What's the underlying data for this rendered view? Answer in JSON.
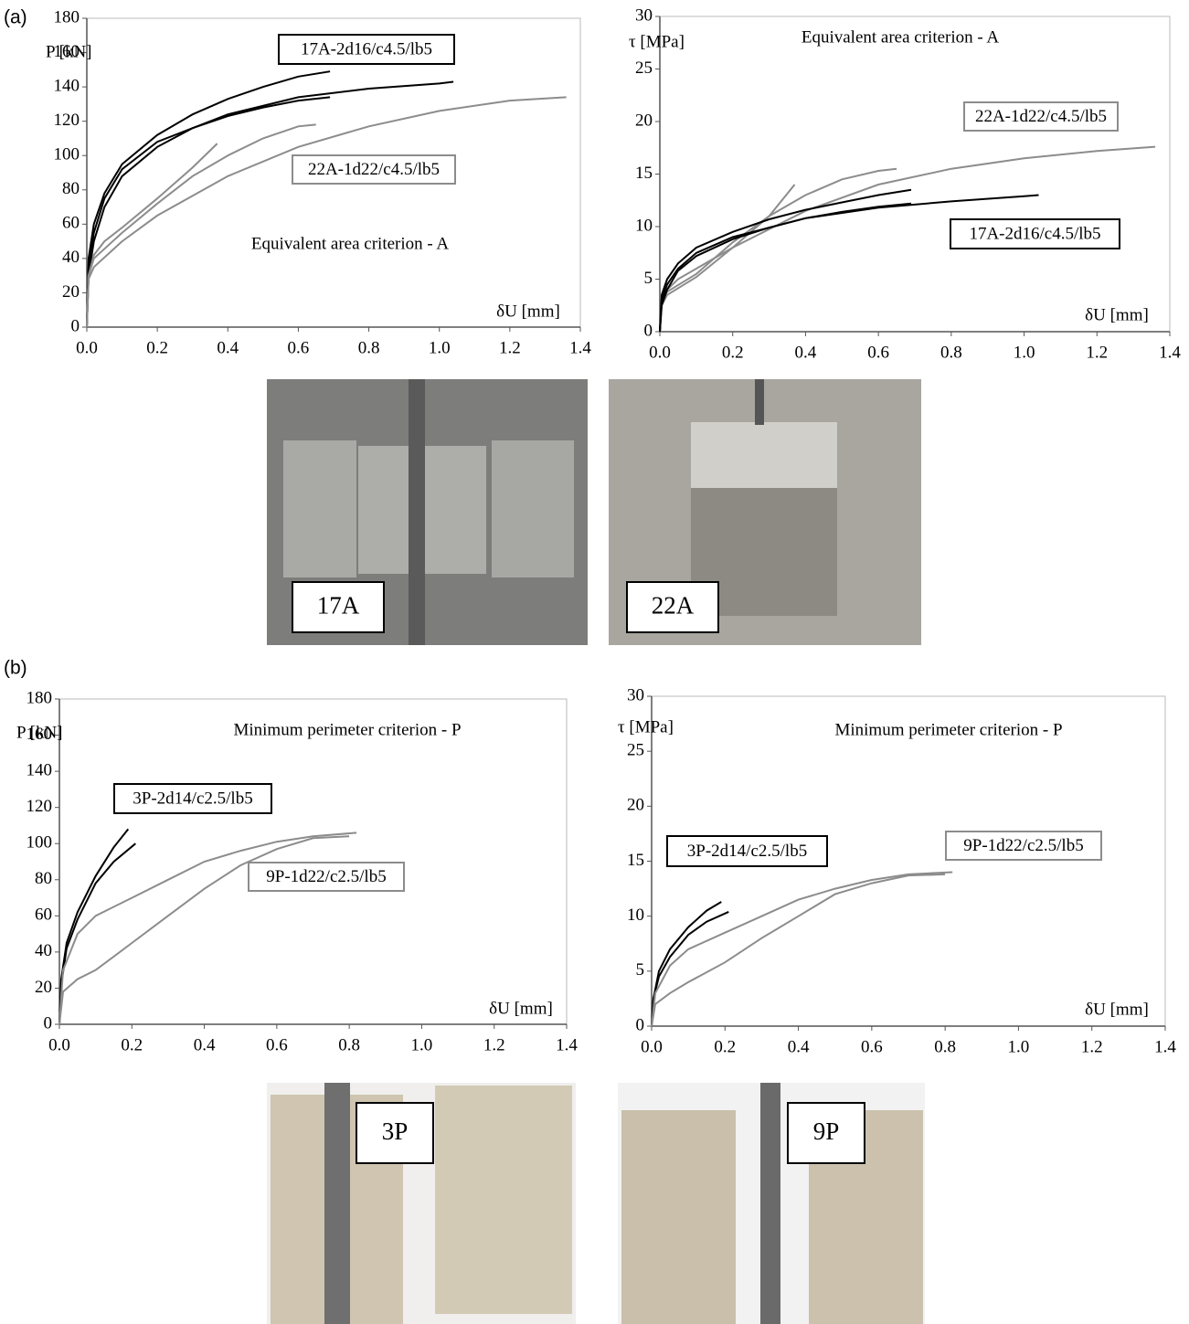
{
  "panels": [
    {
      "label": "(a)",
      "photos": [
        "17A",
        "22A"
      ]
    },
    {
      "label": "(b)",
      "photos": [
        "3P",
        "9P"
      ]
    }
  ],
  "chart_data": [
    {
      "type": "line",
      "title": "Equivalent area criterion - A",
      "y_label": "P [kN]",
      "x_label": "δU [mm]",
      "xlim": [
        0,
        1.4
      ],
      "ylim": [
        0,
        180
      ],
      "xticks": [
        {
          "value": 0,
          "label": "0.0"
        },
        0.2,
        0.4,
        0.6,
        0.8,
        {
          "value": 1,
          "label": "1.0"
        },
        1.2,
        1.4
      ],
      "yticks": [
        0,
        20,
        40,
        60,
        80,
        100,
        120,
        140,
        160,
        180
      ],
      "series": [
        {
          "name": "17A-2d16/c4.5/lb5",
          "color": "#000000",
          "lines": [
            {
              "x": [
                0,
                0.005,
                0.02,
                0.05,
                0.1,
                0.2,
                0.3,
                0.4,
                0.5,
                0.6,
                0.69
              ],
              "values": [
                0,
                40,
                60,
                78,
                95,
                112,
                124,
                133,
                140,
                146,
                149
              ]
            },
            {
              "x": [
                0,
                0.005,
                0.02,
                0.05,
                0.1,
                0.2,
                0.4,
                0.6,
                0.8,
                1.0,
                1.04
              ],
              "values": [
                0,
                35,
                55,
                75,
                92,
                108,
                124,
                134,
                139,
                142,
                143
              ]
            },
            {
              "x": [
                0,
                0.005,
                0.02,
                0.05,
                0.1,
                0.2,
                0.3,
                0.4,
                0.5,
                0.6,
                0.69
              ],
              "values": [
                0,
                30,
                50,
                70,
                88,
                105,
                116,
                123,
                128,
                132,
                134
              ]
            }
          ]
        },
        {
          "name": "22A-1d22/c4.5/lb5",
          "color": "#8c8c8c",
          "lines": [
            {
              "x": [
                0,
                0.005,
                0.02,
                0.05,
                0.1,
                0.2,
                0.3,
                0.37
              ],
              "values": [
                0,
                30,
                42,
                50,
                58,
                75,
                93,
                107
              ]
            },
            {
              "x": [
                0,
                0.005,
                0.02,
                0.1,
                0.2,
                0.3,
                0.4,
                0.5,
                0.6,
                0.65
              ],
              "values": [
                0,
                30,
                40,
                55,
                72,
                88,
                100,
                110,
                117,
                118
              ]
            },
            {
              "x": [
                0,
                0.005,
                0.02,
                0.1,
                0.2,
                0.4,
                0.6,
                0.8,
                1.0,
                1.2,
                1.36
              ],
              "values": [
                0,
                28,
                35,
                50,
                65,
                88,
                105,
                117,
                126,
                132,
                134
              ]
            }
          ]
        }
      ]
    },
    {
      "type": "line",
      "title": "Equivalent area criterion - A",
      "y_label": "τ [MPa]",
      "x_label": "δU [mm]",
      "xlim": [
        0,
        1.4
      ],
      "ylim": [
        0,
        30
      ],
      "xticks": [
        {
          "value": 0,
          "label": "0.0"
        },
        0.2,
        0.4,
        0.6,
        0.8,
        {
          "value": 1,
          "label": "1.0"
        },
        1.2,
        1.4
      ],
      "yticks": [
        0,
        5,
        10,
        15,
        20,
        25,
        30
      ],
      "series": [
        {
          "name": "22A-1d22/c4.5/lb5",
          "color": "#8c8c8c",
          "lines": [
            {
              "x": [
                0,
                0.005,
                0.02,
                0.05,
                0.1,
                0.2,
                0.3,
                0.37
              ],
              "values": [
                0,
                3,
                4,
                5,
                6,
                8,
                11,
                14
              ]
            },
            {
              "x": [
                0,
                0.005,
                0.02,
                0.1,
                0.2,
                0.3,
                0.4,
                0.5,
                0.6,
                0.65
              ],
              "values": [
                0,
                3,
                3.8,
                5.5,
                8.5,
                11,
                13,
                14.5,
                15.3,
                15.5
              ]
            },
            {
              "x": [
                0,
                0.005,
                0.02,
                0.1,
                0.2,
                0.4,
                0.6,
                0.8,
                1.0,
                1.2,
                1.36
              ],
              "values": [
                0,
                2.5,
                3.5,
                5.2,
                8,
                11.5,
                14,
                15.5,
                16.5,
                17.2,
                17.6
              ]
            }
          ]
        },
        {
          "name": "17A-2d16/c4.5/lb5",
          "color": "#000000",
          "lines": [
            {
              "x": [
                0,
                0.005,
                0.02,
                0.05,
                0.1,
                0.2,
                0.3,
                0.4,
                0.5,
                0.6,
                0.69
              ],
              "values": [
                0,
                3.5,
                5,
                6.5,
                8,
                9.5,
                10.7,
                11.6,
                12.3,
                13,
                13.5
              ]
            },
            {
              "x": [
                0,
                0.005,
                0.02,
                0.05,
                0.1,
                0.2,
                0.4,
                0.6,
                0.8,
                1.0,
                1.04
              ],
              "values": [
                0,
                3,
                4.5,
                6,
                7.5,
                9,
                10.8,
                11.8,
                12.4,
                12.9,
                13
              ]
            },
            {
              "x": [
                0,
                0.005,
                0.02,
                0.05,
                0.1,
                0.2,
                0.3,
                0.4,
                0.5,
                0.6,
                0.69
              ],
              "values": [
                0,
                2.5,
                4,
                5.8,
                7.2,
                8.8,
                9.9,
                10.8,
                11.4,
                11.9,
                12.2
              ]
            }
          ]
        }
      ]
    },
    {
      "type": "line",
      "title": "Minimum perimeter criterion - P",
      "y_label": "P [kN]",
      "x_label": "δU [mm]",
      "xlim": [
        0,
        1.4
      ],
      "ylim": [
        0,
        180
      ],
      "xticks": [
        {
          "value": 0,
          "label": "0.0"
        },
        0.2,
        0.4,
        0.6,
        0.8,
        {
          "value": 1,
          "label": "1.0"
        },
        1.2,
        1.4
      ],
      "yticks": [
        0,
        20,
        40,
        60,
        80,
        100,
        120,
        140,
        160,
        180
      ],
      "series": [
        {
          "name": "3P-2d14/c2.5/lb5",
          "color": "#000000",
          "lines": [
            {
              "x": [
                0,
                0.005,
                0.02,
                0.05,
                0.1,
                0.15,
                0.19
              ],
              "values": [
                0,
                25,
                45,
                62,
                82,
                98,
                108
              ]
            },
            {
              "x": [
                0,
                0.005,
                0.02,
                0.05,
                0.1,
                0.15,
                0.21
              ],
              "values": [
                0,
                22,
                42,
                58,
                78,
                90,
                100
              ]
            }
          ]
        },
        {
          "name": "9P-1d22/c2.5/lb5",
          "color": "#8c8c8c",
          "lines": [
            {
              "x": [
                0,
                0.01,
                0.05,
                0.1,
                0.2,
                0.3,
                0.4,
                0.5,
                0.6,
                0.7,
                0.82
              ],
              "values": [
                0,
                30,
                50,
                60,
                70,
                80,
                90,
                96,
                101,
                104,
                106
              ]
            },
            {
              "x": [
                0,
                0.01,
                0.05,
                0.1,
                0.2,
                0.3,
                0.4,
                0.5,
                0.6,
                0.7,
                0.8
              ],
              "values": [
                0,
                18,
                25,
                30,
                45,
                60,
                75,
                88,
                97,
                103,
                104
              ]
            }
          ]
        }
      ]
    },
    {
      "type": "line",
      "title": "Minimum perimeter criterion - P",
      "y_label": "τ [MPa]",
      "x_label": "δU [mm]",
      "xlim": [
        0,
        1.4
      ],
      "ylim": [
        0,
        30
      ],
      "xticks": [
        {
          "value": 0,
          "label": "0.0"
        },
        0.2,
        0.4,
        0.6,
        0.8,
        {
          "value": 1,
          "label": "1.0"
        },
        1.2,
        1.4
      ],
      "yticks": [
        0,
        5,
        10,
        15,
        20,
        25,
        30
      ],
      "series": [
        {
          "name": "3P-2d14/c2.5/lb5",
          "color": "#000000",
          "lines": [
            {
              "x": [
                0,
                0.005,
                0.02,
                0.05,
                0.1,
                0.15,
                0.19
              ],
              "values": [
                0,
                2.5,
                5,
                7,
                9,
                10.5,
                11.3
              ]
            },
            {
              "x": [
                0,
                0.005,
                0.02,
                0.05,
                0.1,
                0.15,
                0.21
              ],
              "values": [
                0,
                2.5,
                4.5,
                6.3,
                8.3,
                9.5,
                10.4
              ]
            }
          ]
        },
        {
          "name": "9P-1d22/c2.5/lb5",
          "color": "#8c8c8c",
          "lines": [
            {
              "x": [
                0,
                0.01,
                0.05,
                0.1,
                0.2,
                0.3,
                0.4,
                0.5,
                0.6,
                0.7,
                0.82
              ],
              "values": [
                0,
                3,
                5.5,
                7,
                8.5,
                10,
                11.5,
                12.5,
                13.3,
                13.8,
                14
              ]
            },
            {
              "x": [
                0,
                0.01,
                0.05,
                0.1,
                0.2,
                0.3,
                0.4,
                0.5,
                0.6,
                0.7,
                0.8
              ],
              "values": [
                0,
                2,
                3,
                4,
                5.8,
                8,
                10,
                12,
                13,
                13.7,
                13.8
              ]
            }
          ]
        }
      ]
    }
  ]
}
